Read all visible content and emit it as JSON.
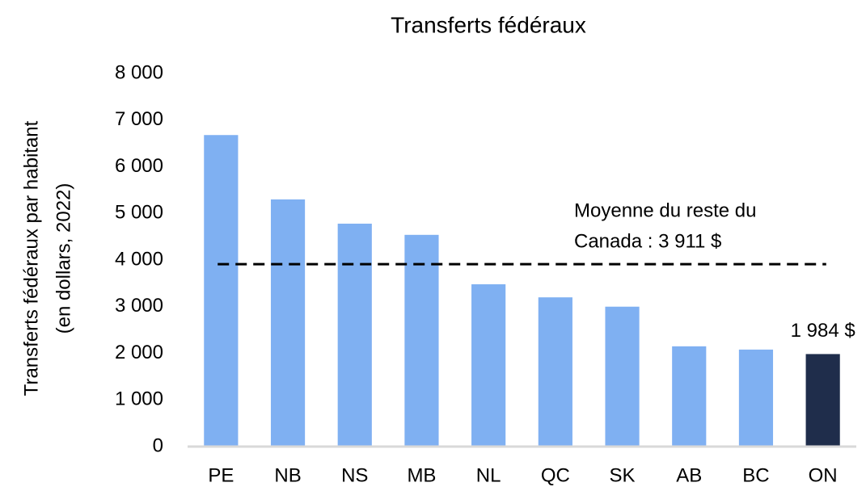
{
  "chart_data": {
    "type": "bar",
    "title": "Transferts fédéraux",
    "y_label": [
      "Transferts fédéraux par habitant",
      "(en dollars, 2022)"
    ],
    "categories": [
      "PE",
      "NB",
      "NS",
      "MB",
      "NL",
      "QC",
      "SK",
      "AB",
      "BC",
      "ON"
    ],
    "values": [
      6680,
      5300,
      4780,
      4540,
      3480,
      3200,
      3000,
      2150,
      2080,
      1984
    ],
    "value_labels": [
      null,
      null,
      null,
      null,
      null,
      null,
      null,
      null,
      null,
      "1 984 $"
    ],
    "colors": [
      "#7fb0f2",
      "#7fb0f2",
      "#7fb0f2",
      "#7fb0f2",
      "#7fb0f2",
      "#7fb0f2",
      "#7fb0f2",
      "#7fb0f2",
      "#7fb0f2",
      "#1f2d4b"
    ],
    "ylim": [
      0,
      8000
    ],
    "yticks": [
      0,
      {
        "value": 1000,
        "label": "1 000"
      },
      {
        "value": 2000,
        "label": "2 000"
      },
      {
        "value": 3000,
        "label": "3 000"
      },
      {
        "value": 4000,
        "label": "4 000"
      },
      {
        "value": 5000,
        "label": "5 000"
      },
      {
        "value": 6000,
        "label": "6 000"
      },
      {
        "value": 7000,
        "label": "7 000"
      },
      {
        "value": 8000,
        "label": "8 000"
      }
    ],
    "grid": false,
    "reference_line": {
      "value": 3911,
      "label": [
        "Moyenne du reste du",
        "Canada : 3 911 $"
      ],
      "color": "#000000",
      "dashed": true
    }
  }
}
